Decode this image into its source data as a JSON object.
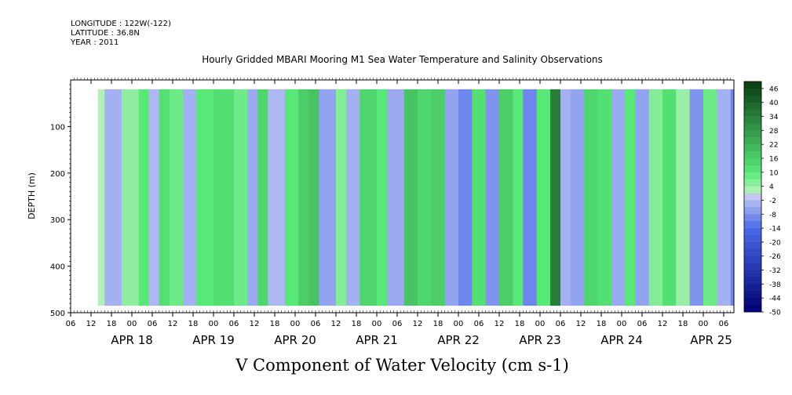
{
  "header": {
    "longitude": "LONGITUDE : 122W(-122)",
    "latitude": "LATITUDE : 36.8N",
    "year": "YEAR : 2011"
  },
  "chart_data": {
    "type": "heatmap",
    "title": "Hourly Gridded MBARI Mooring M1 Sea Water Temperature and Salinity Observations",
    "xlabel": "V Component of Water Velocity (cm s-1)",
    "ylabel": "DEPTH (m)",
    "x_range": [
      "2011-04-17T06:00",
      "2011-04-25T09:00"
    ],
    "data_x_range": [
      "2011-04-17T14:00",
      "2011-04-25T09:00"
    ],
    "ylim": [
      500,
      0
    ],
    "data_depth_range": [
      20,
      485
    ],
    "y_ticks": [
      100,
      200,
      300,
      400,
      500
    ],
    "x_hour_ticks": [
      "06",
      "12",
      "18",
      "00",
      "06",
      "12",
      "18",
      "00",
      "06",
      "12",
      "18",
      "00",
      "06",
      "12",
      "18",
      "00",
      "06",
      "12",
      "18",
      "00",
      "06",
      "12",
      "18",
      "00",
      "06",
      "12",
      "18",
      "00",
      "06",
      "12",
      "18",
      "00",
      "06"
    ],
    "x_day_labels": [
      "APR 18",
      "APR 19",
      "APR 20",
      "APR 21",
      "APR 22",
      "APR 23",
      "APR 24",
      "APR 25"
    ],
    "colorbar": {
      "labels": [
        "46",
        "40",
        "34",
        "28",
        "22",
        "16",
        "10",
        "4",
        "-2",
        "-8",
        "-14",
        "-20",
        "-26",
        "-32",
        "-38",
        "-44",
        "-50"
      ],
      "levels": [
        49,
        46,
        43,
        40,
        37,
        34,
        31,
        28,
        25,
        22,
        19,
        16,
        13,
        10,
        7,
        4,
        1,
        -2,
        -5,
        -8,
        -11,
        -14,
        -17,
        -20,
        -23,
        -26,
        -29,
        -32,
        -35,
        -38,
        -41,
        -44,
        -47,
        -50
      ],
      "colors": {
        "negative_strong": "#000070",
        "negative_mid": "#4a6ae8",
        "negative_weak": "#c8cdf4",
        "positive_weak": "#c8f2c8",
        "positive_mid": "#58e878",
        "positive_strong": "#0a3a12"
      }
    },
    "bands": [
      {
        "day": "APR 17",
        "hour": "14",
        "v": 2
      },
      {
        "day": "APR 17",
        "hour": "16",
        "v": -4
      },
      {
        "day": "APR 17",
        "hour": "21",
        "v": 5
      },
      {
        "day": "APR 18",
        "hour": "02",
        "v": 10
      },
      {
        "day": "APR 18",
        "hour": "05",
        "v": -3
      },
      {
        "day": "APR 18",
        "hour": "08",
        "v": 12
      },
      {
        "day": "APR 18",
        "hour": "11",
        "v": 8
      },
      {
        "day": "APR 18",
        "hour": "15",
        "v": -4
      },
      {
        "day": "APR 18",
        "hour": "19",
        "v": 10
      },
      {
        "day": "APR 19",
        "hour": "00",
        "v": 12
      },
      {
        "day": "APR 19",
        "hour": "06",
        "v": 8
      },
      {
        "day": "APR 19",
        "hour": "10",
        "v": -5
      },
      {
        "day": "APR 19",
        "hour": "13",
        "v": 14
      },
      {
        "day": "APR 19",
        "hour": "16",
        "v": -3
      },
      {
        "day": "APR 19",
        "hour": "21",
        "v": 10
      },
      {
        "day": "APR 20",
        "hour": "01",
        "v": 16
      },
      {
        "day": "APR 20",
        "hour": "04",
        "v": 18
      },
      {
        "day": "APR 20",
        "hour": "07",
        "v": -6
      },
      {
        "day": "APR 20",
        "hour": "12",
        "v": 6
      },
      {
        "day": "APR 20",
        "hour": "15",
        "v": -4
      },
      {
        "day": "APR 20",
        "hour": "19",
        "v": 14
      },
      {
        "day": "APR 21",
        "hour": "00",
        "v": 10
      },
      {
        "day": "APR 21",
        "hour": "03",
        "v": -5
      },
      {
        "day": "APR 21",
        "hour": "08",
        "v": 18
      },
      {
        "day": "APR 21",
        "hour": "12",
        "v": 14
      },
      {
        "day": "APR 21",
        "hour": "16",
        "v": 16
      },
      {
        "day": "APR 21",
        "hour": "20",
        "v": -6
      },
      {
        "day": "APR 22",
        "hour": "00",
        "v": -10
      },
      {
        "day": "APR 22",
        "hour": "04",
        "v": 12
      },
      {
        "day": "APR 22",
        "hour": "08",
        "v": -8
      },
      {
        "day": "APR 22",
        "hour": "12",
        "v": 16
      },
      {
        "day": "APR 22",
        "hour": "16",
        "v": 10
      },
      {
        "day": "APR 22",
        "hour": "19",
        "v": -10
      },
      {
        "day": "APR 22",
        "hour": "23",
        "v": 10
      },
      {
        "day": "APR 23",
        "hour": "03",
        "v": 34
      },
      {
        "day": "APR 23",
        "hour": "06",
        "v": -4
      },
      {
        "day": "APR 23",
        "hour": "09",
        "v": -6
      },
      {
        "day": "APR 23",
        "hour": "13",
        "v": 14
      },
      {
        "day": "APR 23",
        "hour": "17",
        "v": 12
      },
      {
        "day": "APR 23",
        "hour": "21",
        "v": -5
      },
      {
        "day": "APR 24",
        "hour": "01",
        "v": 10
      },
      {
        "day": "APR 24",
        "hour": "04",
        "v": -6
      },
      {
        "day": "APR 24",
        "hour": "08",
        "v": 6
      },
      {
        "day": "APR 24",
        "hour": "12",
        "v": 12
      },
      {
        "day": "APR 24",
        "hour": "16",
        "v": 4
      },
      {
        "day": "APR 24",
        "hour": "20",
        "v": -8
      },
      {
        "day": "APR 25",
        "hour": "00",
        "v": 8
      },
      {
        "day": "APR 25",
        "hour": "04",
        "v": -4
      },
      {
        "day": "APR 25",
        "hour": "08",
        "v": -10
      }
    ]
  }
}
